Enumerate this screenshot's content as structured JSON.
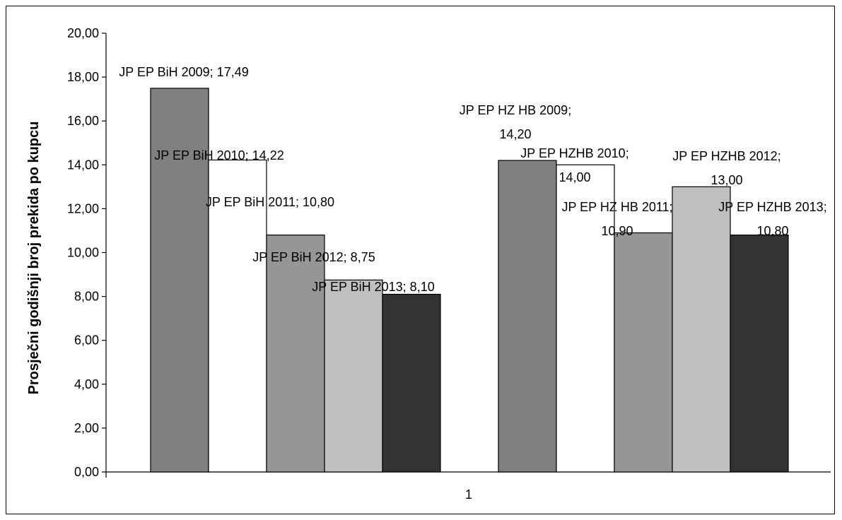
{
  "chart_data": {
    "type": "bar",
    "title": "",
    "xlabel": "",
    "ylabel": "Prosječni godišnji broj prekida po kupcu",
    "categories": [
      "1"
    ],
    "ylim": [
      0,
      20
    ],
    "ytick_step": 2,
    "ytick_labels": [
      "0,00",
      "2,00",
      "4,00",
      "6,00",
      "8,00",
      "10,00",
      "12,00",
      "14,00",
      "16,00",
      "18,00",
      "20,00"
    ],
    "grid": false,
    "legend": "none",
    "series": [
      {
        "name": "JP EP BiH 2009",
        "value": 17.49,
        "label_lines": [
          "JP EP BiH 2009; 17,49"
        ],
        "color": "#808080"
      },
      {
        "name": "JP EP BiH 2010",
        "value": 14.22,
        "label_lines": [
          "JP EP BiH 2010; 14,22"
        ],
        "color": "#ffffff"
      },
      {
        "name": "JP EP BiH 2011",
        "value": 10.8,
        "label_lines": [
          "JP EP BiH 2011; 10,80"
        ],
        "color": "#969696"
      },
      {
        "name": "JP EP BiH 2012",
        "value": 8.75,
        "label_lines": [
          "JP EP BiH 2012; 8,75"
        ],
        "color": "#c0c0c0"
      },
      {
        "name": "JP EP BiH 2013",
        "value": 8.1,
        "label_lines": [
          "JP EP BiH 2013; 8,10"
        ],
        "color": "#333333"
      },
      {
        "name": "JP EP HZ HB 2009",
        "value": 14.2,
        "label_lines": [
          "JP EP HZ HB 2009;",
          "14,20"
        ],
        "color": "#808080"
      },
      {
        "name": "JP EP HZHB 2010",
        "value": 14.0,
        "label_lines": [
          "JP EP HZHB 2010;",
          "14,00"
        ],
        "color": "#ffffff"
      },
      {
        "name": "JP EP HZ HB 2011",
        "value": 10.9,
        "label_lines": [
          "JP EP HZ HB 2011;",
          "10,90"
        ],
        "color": "#969696"
      },
      {
        "name": "JP EP HZHB 2012",
        "value": 13.0,
        "label_lines": [
          "JP EP HZHB 2012;",
          "13,00"
        ],
        "color": "#c0c0c0"
      },
      {
        "name": "JP EP HZHB 2013",
        "value": 10.8,
        "label_lines": [
          "JP EP HZHB 2013;",
          "10,80"
        ],
        "color": "#333333"
      }
    ]
  }
}
